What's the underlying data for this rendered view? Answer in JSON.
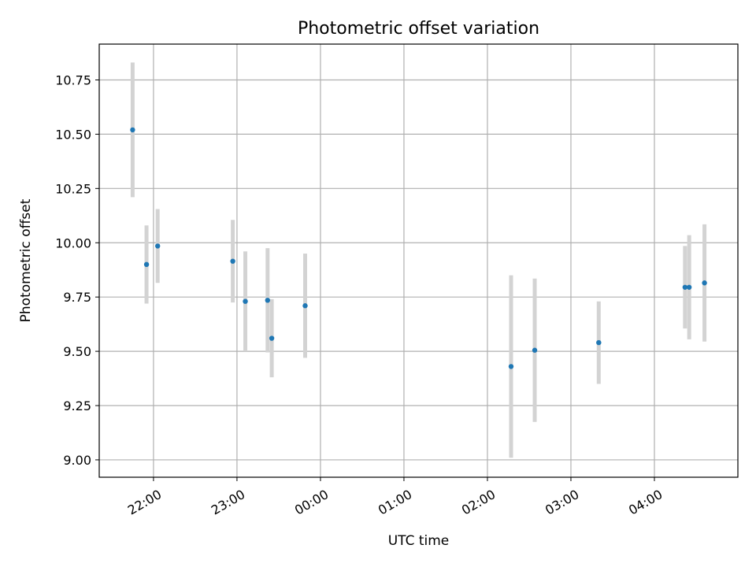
{
  "chart_data": {
    "type": "scatter",
    "title": "Photometric offset variation",
    "xlabel": "UTC time",
    "ylabel": "Photometric offset",
    "grid": true,
    "x_axis": {
      "unit": "hours since 21:00 UTC",
      "range": [
        0.35,
        8.0
      ],
      "ticks": [
        {
          "value": 1,
          "label": "22:00"
        },
        {
          "value": 2,
          "label": "23:00"
        },
        {
          "value": 3,
          "label": "00:00"
        },
        {
          "value": 4,
          "label": "01:00"
        },
        {
          "value": 5,
          "label": "02:00"
        },
        {
          "value": 6,
          "label": "03:00"
        },
        {
          "value": 7,
          "label": "04:00"
        }
      ]
    },
    "y_axis": {
      "range": [
        8.92,
        10.915
      ],
      "ticks": [
        {
          "value": 9.0,
          "label": "9.00"
        },
        {
          "value": 9.25,
          "label": "9.25"
        },
        {
          "value": 9.5,
          "label": "9.50"
        },
        {
          "value": 9.75,
          "label": "9.75"
        },
        {
          "value": 10.0,
          "label": "10.00"
        },
        {
          "value": 10.25,
          "label": "10.25"
        },
        {
          "value": 10.5,
          "label": "10.50"
        },
        {
          "value": 10.75,
          "label": "10.75"
        }
      ]
    },
    "colors": {
      "point": "#1f77b4",
      "errorbar": "#d3d3d3",
      "grid": "#b0b0b0"
    },
    "points": [
      {
        "time": "21:45",
        "y": 10.52,
        "yerr": 0.31
      },
      {
        "time": "21:55",
        "y": 9.9,
        "yerr": 0.18
      },
      {
        "time": "22:03",
        "y": 9.985,
        "yerr": 0.17
      },
      {
        "time": "22:57",
        "y": 9.915,
        "yerr": 0.19
      },
      {
        "time": "23:06",
        "y": 9.73,
        "yerr": 0.23
      },
      {
        "time": "23:22",
        "y": 9.735,
        "yerr": 0.24
      },
      {
        "time": "23:25",
        "y": 9.56,
        "yerr": 0.18
      },
      {
        "time": "23:49",
        "y": 9.71,
        "yerr": 0.24
      },
      {
        "time": "02:17",
        "y": 9.43,
        "yerr": 0.42
      },
      {
        "time": "02:34",
        "y": 9.505,
        "yerr": 0.33
      },
      {
        "time": "03:20",
        "y": 9.54,
        "yerr": 0.19
      },
      {
        "time": "04:22",
        "y": 9.795,
        "yerr": 0.19
      },
      {
        "time": "04:25",
        "y": 9.795,
        "yerr": 0.24
      },
      {
        "time": "04:36",
        "y": 9.815,
        "yerr": 0.27
      }
    ]
  }
}
